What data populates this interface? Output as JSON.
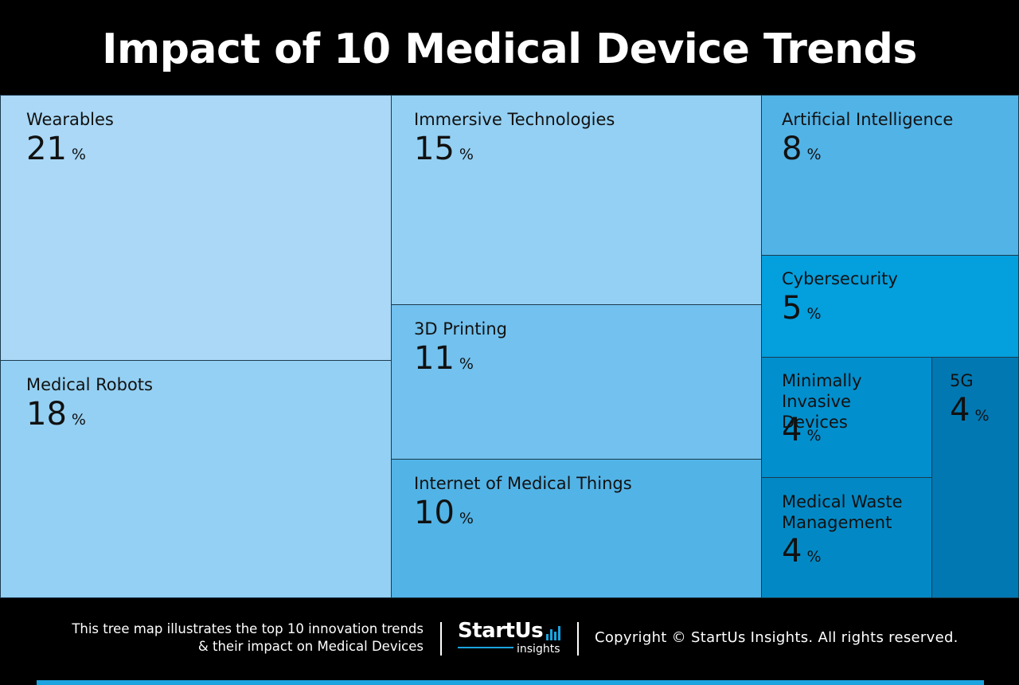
{
  "header": {
    "title": "Impact of 10 Medical Device Trends"
  },
  "chart_data": {
    "type": "treemap",
    "title": "Impact of 10 Medical Device Trends",
    "unit": "%",
    "items": [
      {
        "label": "Wearables",
        "value": 21,
        "color": "#aad8f6"
      },
      {
        "label": "Medical Robots",
        "value": 18,
        "color": "#94d0f3"
      },
      {
        "label": "Immersive Technologies",
        "value": 15,
        "color": "#94d0f3"
      },
      {
        "label": "3D Printing",
        "value": 11,
        "color": "#72c1ee"
      },
      {
        "label": "Internet of Medical Things",
        "value": 10,
        "color": "#52b3e6"
      },
      {
        "label": "Artificial Intelligence",
        "value": 8,
        "color": "#52b3e6"
      },
      {
        "label": "Cybersecurity",
        "value": 5,
        "color": "#049fdd"
      },
      {
        "label": "Minimally Invasive Devices",
        "value": 4,
        "color": "#028fcd"
      },
      {
        "label": "Medical Waste Management",
        "value": 4,
        "color": "#0289c5"
      },
      {
        "label": "5G",
        "value": 4,
        "color": "#0178b2"
      }
    ]
  },
  "footer": {
    "description_line1": "This tree map illustrates the top 10 innovation trends",
    "description_line2": "& their impact on Medical Devices",
    "logo_main": "StartUs",
    "logo_sub": "insights",
    "copyright": "Copyright © StartUs Insights. All rights reserved.",
    "accent_color": "#1aa3de"
  }
}
